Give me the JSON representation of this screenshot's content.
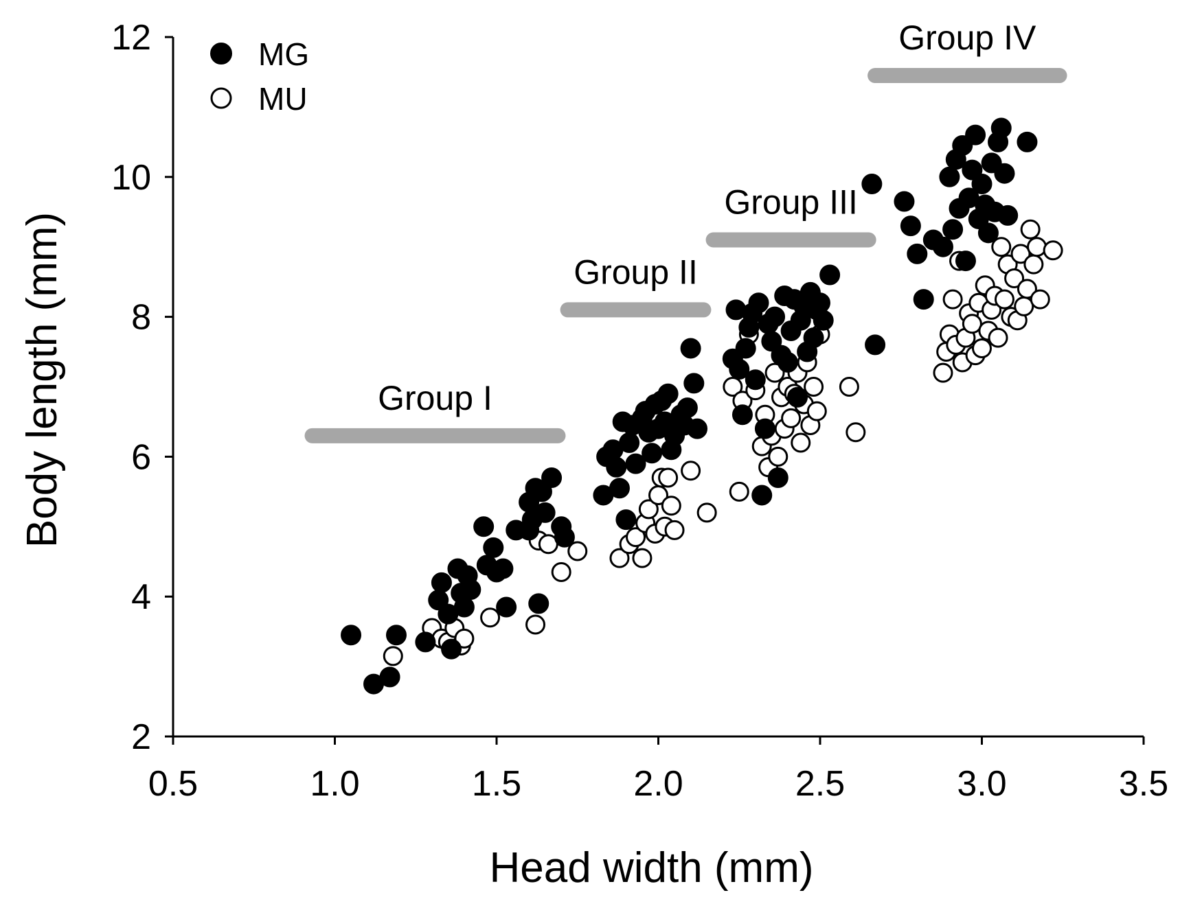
{
  "chart_data": {
    "type": "scatter",
    "title": "",
    "xlabel": "Head width (mm)",
    "ylabel": "Body length (mm)",
    "xlim": [
      0.5,
      3.5
    ],
    "ylim": [
      2,
      12
    ],
    "xticks": [
      0.5,
      1.0,
      1.5,
      2.0,
      2.5,
      3.0,
      3.5
    ],
    "xtick_labels": [
      "0.5",
      "1.0",
      "1.5",
      "2.0",
      "2.5",
      "3.0",
      "3.5"
    ],
    "yticks": [
      2,
      4,
      6,
      8,
      10,
      12
    ],
    "ytick_labels": [
      "2",
      "4",
      "6",
      "8",
      "10",
      "12"
    ],
    "grid": false,
    "legend_position": "top-left",
    "colors": {
      "mg_fill": "#000000",
      "mu_fill": "#ffffff",
      "group_bar": "#a6a6a6"
    },
    "groups": [
      {
        "label": "Group I",
        "x_start": 0.93,
        "x_end": 1.69,
        "y": 6.3
      },
      {
        "label": "Group II",
        "x_start": 1.72,
        "x_end": 2.14,
        "y": 8.1
      },
      {
        "label": "Group III",
        "x_start": 2.17,
        "x_end": 2.65,
        "y": 9.1
      },
      {
        "label": "Group IV",
        "x_start": 2.67,
        "x_end": 3.24,
        "y": 11.45
      }
    ],
    "series": [
      {
        "name": "MG",
        "marker": "filled-circle",
        "points": [
          [
            1.05,
            3.45
          ],
          [
            1.12,
            2.75
          ],
          [
            1.17,
            2.85
          ],
          [
            1.19,
            3.45
          ],
          [
            1.28,
            3.35
          ],
          [
            1.32,
            3.95
          ],
          [
            1.33,
            4.2
          ],
          [
            1.35,
            3.75
          ],
          [
            1.36,
            3.25
          ],
          [
            1.38,
            4.4
          ],
          [
            1.39,
            4.05
          ],
          [
            1.4,
            3.85
          ],
          [
            1.41,
            4.3
          ],
          [
            1.42,
            4.1
          ],
          [
            1.46,
            5.0
          ],
          [
            1.47,
            4.45
          ],
          [
            1.49,
            4.7
          ],
          [
            1.5,
            4.35
          ],
          [
            1.52,
            4.4
          ],
          [
            1.53,
            3.85
          ],
          [
            1.56,
            4.95
          ],
          [
            1.6,
            5.35
          ],
          [
            1.6,
            4.95
          ],
          [
            1.61,
            5.1
          ],
          [
            1.62,
            5.55
          ],
          [
            1.63,
            3.9
          ],
          [
            1.64,
            5.5
          ],
          [
            1.65,
            5.2
          ],
          [
            1.67,
            5.7
          ],
          [
            1.7,
            5.0
          ],
          [
            1.71,
            4.85
          ],
          [
            1.83,
            5.45
          ],
          [
            1.84,
            6.0
          ],
          [
            1.86,
            6.1
          ],
          [
            1.87,
            5.85
          ],
          [
            1.88,
            5.55
          ],
          [
            1.89,
            6.5
          ],
          [
            1.9,
            5.1
          ],
          [
            1.91,
            6.2
          ],
          [
            1.92,
            6.45
          ],
          [
            1.93,
            5.9
          ],
          [
            1.95,
            6.55
          ],
          [
            1.96,
            6.65
          ],
          [
            1.97,
            6.35
          ],
          [
            1.98,
            6.05
          ],
          [
            1.99,
            6.75
          ],
          [
            2.0,
            6.4
          ],
          [
            2.01,
            6.8
          ],
          [
            2.02,
            6.5
          ],
          [
            2.03,
            6.9
          ],
          [
            2.04,
            6.1
          ],
          [
            2.05,
            6.3
          ],
          [
            2.07,
            6.6
          ],
          [
            2.08,
            6.45
          ],
          [
            2.09,
            6.7
          ],
          [
            2.1,
            7.55
          ],
          [
            2.11,
            7.05
          ],
          [
            2.12,
            6.4
          ],
          [
            2.23,
            7.4
          ],
          [
            2.24,
            8.1
          ],
          [
            2.25,
            7.25
          ],
          [
            2.26,
            6.6
          ],
          [
            2.27,
            7.55
          ],
          [
            2.28,
            7.85
          ],
          [
            2.29,
            8.05
          ],
          [
            2.3,
            7.1
          ],
          [
            2.31,
            8.2
          ],
          [
            2.32,
            5.45
          ],
          [
            2.33,
            6.4
          ],
          [
            2.34,
            7.9
          ],
          [
            2.35,
            7.65
          ],
          [
            2.36,
            8.0
          ],
          [
            2.37,
            5.7
          ],
          [
            2.38,
            7.45
          ],
          [
            2.39,
            8.3
          ],
          [
            2.4,
            7.35
          ],
          [
            2.41,
            7.8
          ],
          [
            2.42,
            8.25
          ],
          [
            2.43,
            6.85
          ],
          [
            2.44,
            7.95
          ],
          [
            2.45,
            8.15
          ],
          [
            2.46,
            7.5
          ],
          [
            2.47,
            8.35
          ],
          [
            2.48,
            7.7
          ],
          [
            2.49,
            8.1
          ],
          [
            2.5,
            8.2
          ],
          [
            2.51,
            7.95
          ],
          [
            2.53,
            8.6
          ],
          [
            2.66,
            9.9
          ],
          [
            2.67,
            7.6
          ],
          [
            2.76,
            9.65
          ],
          [
            2.78,
            9.3
          ],
          [
            2.8,
            8.9
          ],
          [
            2.82,
            8.25
          ],
          [
            2.85,
            9.1
          ],
          [
            2.88,
            9.0
          ],
          [
            2.9,
            10.0
          ],
          [
            2.91,
            9.25
          ],
          [
            2.92,
            10.25
          ],
          [
            2.93,
            9.55
          ],
          [
            2.94,
            10.45
          ],
          [
            2.95,
            8.8
          ],
          [
            2.96,
            9.7
          ],
          [
            2.97,
            10.1
          ],
          [
            2.98,
            10.6
          ],
          [
            2.99,
            9.4
          ],
          [
            3.0,
            9.9
          ],
          [
            3.01,
            9.6
          ],
          [
            3.02,
            9.2
          ],
          [
            3.03,
            10.2
          ],
          [
            3.04,
            9.5
          ],
          [
            3.05,
            10.5
          ],
          [
            3.06,
            10.7
          ],
          [
            3.07,
            10.05
          ],
          [
            3.08,
            9.45
          ],
          [
            3.14,
            10.5
          ]
        ]
      },
      {
        "name": "MU",
        "marker": "open-circle",
        "points": [
          [
            1.18,
            3.15
          ],
          [
            1.3,
            3.55
          ],
          [
            1.33,
            3.4
          ],
          [
            1.35,
            3.35
          ],
          [
            1.37,
            3.55
          ],
          [
            1.39,
            3.3
          ],
          [
            1.4,
            3.4
          ],
          [
            1.48,
            3.7
          ],
          [
            1.62,
            3.6
          ],
          [
            1.63,
            4.8
          ],
          [
            1.66,
            4.75
          ],
          [
            1.7,
            4.35
          ],
          [
            1.75,
            4.65
          ],
          [
            1.88,
            4.55
          ],
          [
            1.9,
            5.1
          ],
          [
            1.91,
            4.75
          ],
          [
            1.93,
            4.85
          ],
          [
            1.95,
            4.55
          ],
          [
            1.96,
            5.05
          ],
          [
            1.97,
            5.25
          ],
          [
            1.99,
            4.9
          ],
          [
            2.0,
            5.45
          ],
          [
            2.01,
            5.7
          ],
          [
            2.02,
            5.0
          ],
          [
            2.03,
            5.7
          ],
          [
            2.04,
            5.3
          ],
          [
            2.05,
            4.95
          ],
          [
            2.1,
            5.8
          ],
          [
            2.15,
            5.2
          ],
          [
            2.23,
            7.0
          ],
          [
            2.25,
            5.5
          ],
          [
            2.26,
            6.8
          ],
          [
            2.28,
            7.75
          ],
          [
            2.3,
            6.95
          ],
          [
            2.32,
            6.15
          ],
          [
            2.33,
            6.6
          ],
          [
            2.34,
            5.85
          ],
          [
            2.35,
            6.3
          ],
          [
            2.36,
            7.2
          ],
          [
            2.37,
            6.0
          ],
          [
            2.38,
            6.85
          ],
          [
            2.39,
            6.4
          ],
          [
            2.4,
            7.0
          ],
          [
            2.41,
            6.55
          ],
          [
            2.42,
            6.9
          ],
          [
            2.43,
            7.2
          ],
          [
            2.44,
            6.2
          ],
          [
            2.45,
            6.75
          ],
          [
            2.46,
            7.35
          ],
          [
            2.47,
            6.45
          ],
          [
            2.48,
            7.0
          ],
          [
            2.49,
            6.65
          ],
          [
            2.5,
            7.75
          ],
          [
            2.59,
            7.0
          ],
          [
            2.61,
            6.35
          ],
          [
            2.88,
            7.2
          ],
          [
            2.89,
            7.5
          ],
          [
            2.9,
            7.75
          ],
          [
            2.91,
            8.25
          ],
          [
            2.92,
            7.6
          ],
          [
            2.93,
            8.8
          ],
          [
            2.94,
            7.35
          ],
          [
            2.95,
            7.7
          ],
          [
            2.96,
            8.05
          ],
          [
            2.97,
            7.9
          ],
          [
            2.98,
            7.45
          ],
          [
            2.99,
            8.2
          ],
          [
            3.0,
            7.55
          ],
          [
            3.01,
            8.45
          ],
          [
            3.02,
            7.8
          ],
          [
            3.03,
            8.1
          ],
          [
            3.04,
            8.3
          ],
          [
            3.05,
            7.7
          ],
          [
            3.06,
            9.0
          ],
          [
            3.07,
            8.25
          ],
          [
            3.08,
            8.75
          ],
          [
            3.09,
            8.0
          ],
          [
            3.1,
            8.55
          ],
          [
            3.11,
            7.95
          ],
          [
            3.12,
            8.9
          ],
          [
            3.13,
            8.15
          ],
          [
            3.14,
            8.4
          ],
          [
            3.15,
            9.25
          ],
          [
            3.16,
            8.75
          ],
          [
            3.17,
            9.0
          ],
          [
            3.18,
            8.25
          ],
          [
            3.22,
            8.95
          ]
        ]
      }
    ]
  }
}
